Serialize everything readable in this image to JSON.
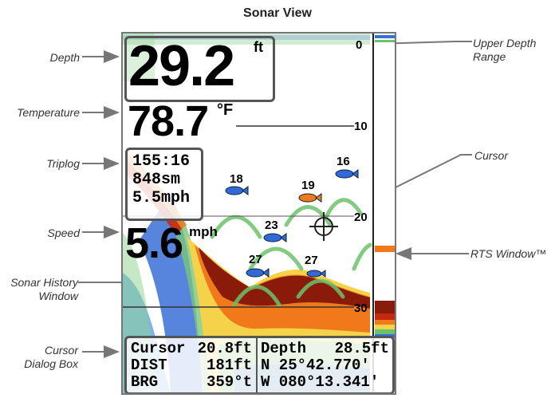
{
  "title": "Sonar View",
  "callouts": {
    "depth": "Depth",
    "temperature": "Temperature",
    "triplog": "Triplog",
    "speed": "Speed",
    "sonar_history_line1": "Sonar History",
    "sonar_history_line2": "Window",
    "cursor_dialog_line1": "Cursor",
    "cursor_dialog_line2": "Dialog Box",
    "upper_depth_line1": "Upper Depth",
    "upper_depth_line2": "Range",
    "cursor": "Cursor",
    "rts_window": "RTS Window™"
  },
  "readouts": {
    "depth_value": "29.2",
    "depth_unit": "ft",
    "temperature_value": "78.7",
    "temperature_unit": "°F",
    "triplog_time": "155:16",
    "triplog_distance": "848sm",
    "triplog_speed": "5.5mph",
    "speed_value": "5.6",
    "speed_unit": "mph"
  },
  "depth_scale": [
    "0",
    "10",
    "20",
    "30"
  ],
  "fish_labels": [
    "16",
    "18",
    "19",
    "23",
    "27",
    "27"
  ],
  "cursor_dialog": {
    "cursor_label": "Cursor",
    "cursor_value": "20.8ft",
    "dist_label": "DIST",
    "dist_value": "181ft",
    "brg_label": "BRG",
    "brg_value": "359°t",
    "depth_label": "Depth",
    "depth_value": "28.5ft",
    "lat": "N 25°42.770'",
    "lon": "W 080°13.341'"
  },
  "colors": {
    "bottom_dark": "#8a1a0a",
    "bottom_red": "#c4280e",
    "bottom_orange": "#f07a1a",
    "noise_blue": "#3a6fd6",
    "noise_green": "#6cc26a",
    "fish_blue": "#2f6ad8"
  }
}
